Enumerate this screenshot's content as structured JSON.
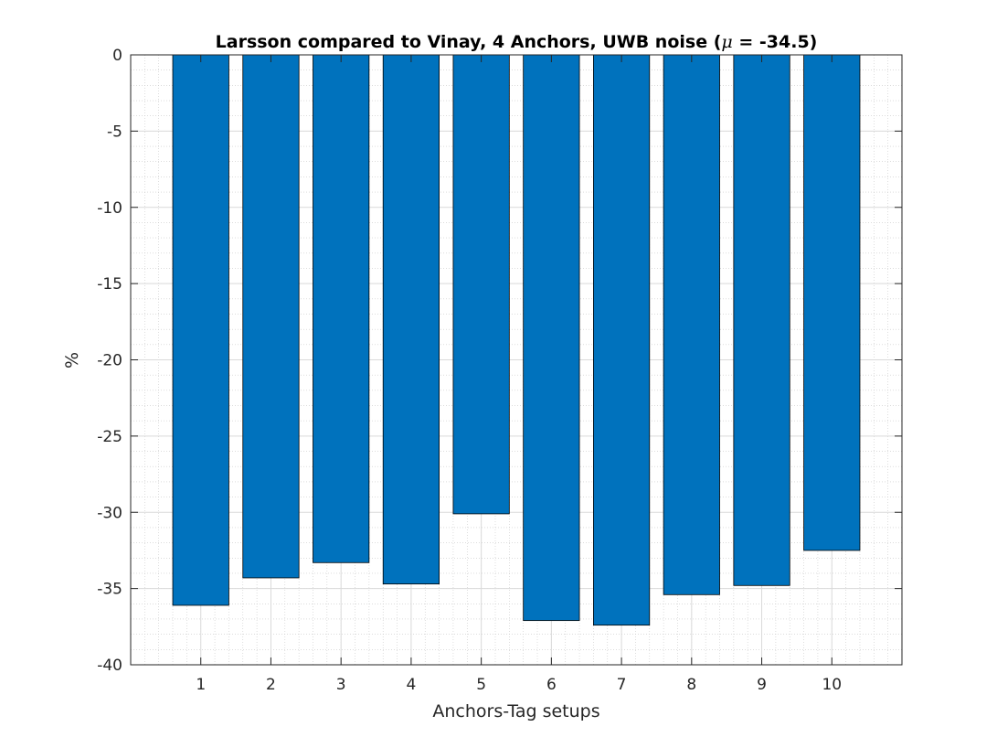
{
  "chart_data": {
    "type": "bar",
    "title": "Larsson compared to Vinay, 4 Anchors, UWB noise (",
    "title_mu": "μ",
    "title_suffix": " = -34.5)",
    "xlabel": "Anchors-Tag setups",
    "ylabel": "%",
    "categories": [
      "1",
      "2",
      "3",
      "4",
      "5",
      "6",
      "7",
      "8",
      "9",
      "10"
    ],
    "values": [
      -36.1,
      -34.3,
      -33.3,
      -34.7,
      -30.1,
      -37.1,
      -37.4,
      -35.4,
      -34.8,
      -32.5
    ],
    "xlim": [
      0,
      11
    ],
    "ylim": [
      -40,
      0
    ],
    "yticks": [
      0,
      -5,
      -10,
      -15,
      -20,
      -25,
      -30,
      -35,
      -40
    ],
    "ytick_labels": [
      "0",
      "-5",
      "-10",
      "-15",
      "-20",
      "-25",
      "-30",
      "-35",
      "-40"
    ],
    "bar_color": "#0072BD",
    "grid": true,
    "minor_grid": true,
    "legend": "none"
  }
}
